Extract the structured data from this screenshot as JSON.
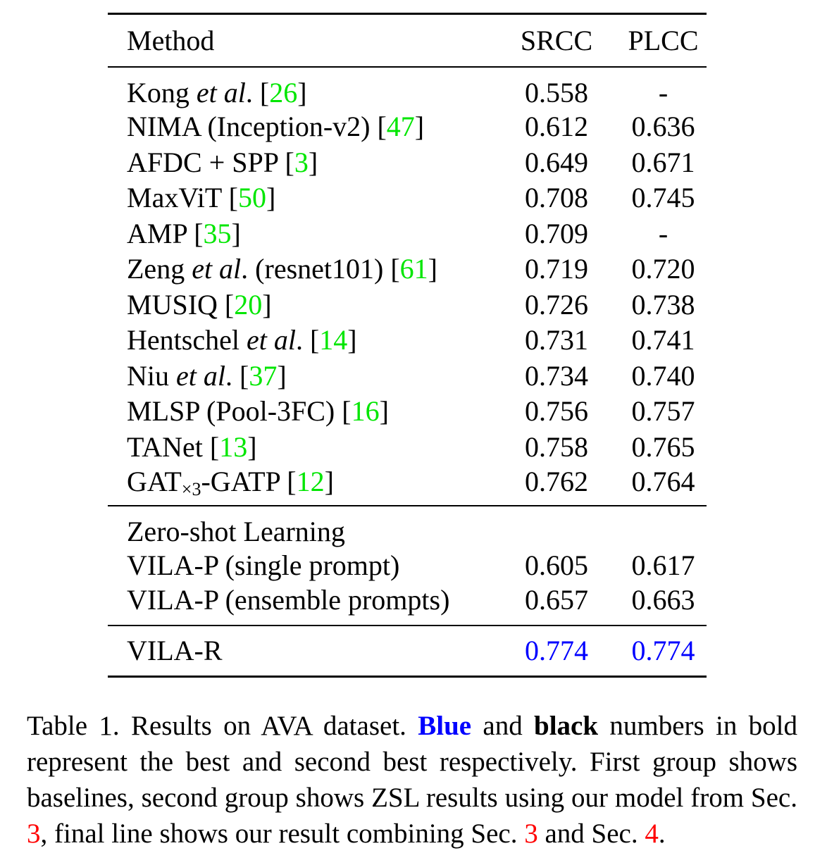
{
  "table": {
    "headers": {
      "method": "Method",
      "srcc": "SRCC",
      "plcc": "PLCC"
    },
    "baselines": [
      {
        "name_pre": "Kong ",
        "name_it": "et al",
        "name_post": ". [",
        "ref": "26",
        "close": "]",
        "srcc": "0.558",
        "plcc": "-"
      },
      {
        "name_pre": "NIMA (Inception-v2) [",
        "ref": "47",
        "close": "]",
        "srcc": "0.612",
        "plcc": "0.636"
      },
      {
        "name_pre": "AFDC + SPP [",
        "ref": "3",
        "close": "]",
        "srcc": "0.649",
        "plcc": "0.671"
      },
      {
        "name_pre": "MaxViT [",
        "ref": "50",
        "close": "]",
        "srcc": "0.708",
        "plcc": "0.745"
      },
      {
        "name_pre": "AMP [",
        "ref": "35",
        "close": "]",
        "srcc": "0.709",
        "plcc": "-"
      },
      {
        "name_pre": "Zeng ",
        "name_it": "et al",
        "name_post": ". (resnet101) [",
        "ref": "61",
        "close": "]",
        "srcc": "0.719",
        "plcc": "0.720"
      },
      {
        "name_pre": "MUSIQ [",
        "ref": "20",
        "close": "]",
        "srcc": "0.726",
        "plcc": "0.738"
      },
      {
        "name_pre": "Hentschel ",
        "name_it": "et al",
        "name_post": ". [",
        "ref": "14",
        "close": "]",
        "srcc": "0.731",
        "plcc": "0.741"
      },
      {
        "name_pre": "Niu ",
        "name_it": "et al",
        "name_post": ". [",
        "ref": "37",
        "close": "]",
        "srcc": "0.734",
        "plcc": "0.740"
      },
      {
        "name_pre": "MLSP (Pool-3FC) [",
        "ref": "16",
        "close": "]",
        "srcc": "0.756",
        "plcc": "0.757"
      },
      {
        "name_pre": "TANet [",
        "ref": "13",
        "close": "]",
        "srcc": "0.758",
        "plcc": "0.765"
      },
      {
        "name_pre": "GAT",
        "name_sub": "×3",
        "name_post": "-GATP [",
        "ref": "12",
        "close": "]",
        "srcc": "0.762",
        "plcc": "0.764"
      }
    ],
    "zsl_heading": "Zero-shot Learning",
    "zsl": [
      {
        "name": "VILA-P (single prompt)",
        "srcc": "0.605",
        "plcc": "0.617"
      },
      {
        "name": "VILA-P (ensemble prompts)",
        "srcc": "0.657",
        "plcc": "0.663"
      }
    ],
    "final": {
      "name": "VILA-R",
      "srcc": "0.774",
      "plcc": "0.774"
    }
  },
  "caption": {
    "t1": "Table 1. Results on AVA dataset. ",
    "blue_word": "Blue",
    "t2": " and ",
    "black_word": "black",
    "t3": " numbers in bold represent the best and second best respectively. First group shows baselines, second group shows ZSL results using our model from Sec. ",
    "ref1": "3",
    "t4": ", final line shows our result combining Sec. ",
    "ref2": "3",
    "t5": " and Sec. ",
    "ref3": "4",
    "t6": "."
  },
  "colors": {
    "citation": "#00e600",
    "section_ref": "#ff0000",
    "best": "#0000ff"
  }
}
